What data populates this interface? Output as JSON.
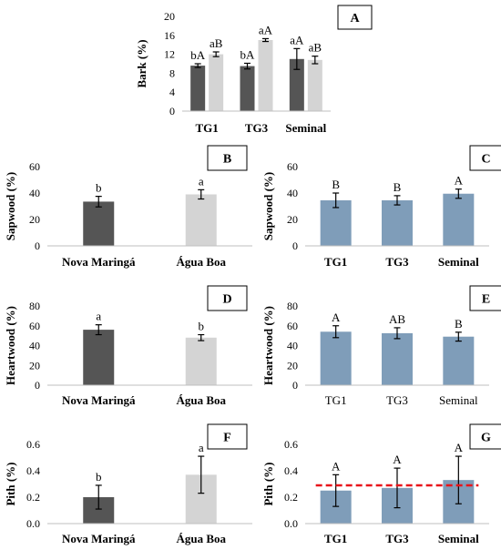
{
  "chart_data": [
    {
      "panel": "A",
      "type": "bar",
      "ylabel": "Bark (%)",
      "ylim": [
        0,
        20
      ],
      "yticks": [
        0,
        4,
        8,
        12,
        16,
        20
      ],
      "y_tick_labels": [
        "0",
        "4",
        "8",
        "12",
        "16",
        "20"
      ],
      "categories": [
        "TG1",
        "TG3",
        "Seminal"
      ],
      "category_style": "bold",
      "series": [
        {
          "color": "#555555",
          "values": [
            9.6,
            9.5,
            11.0
          ],
          "errors": [
            0.4,
            0.6,
            2.2
          ],
          "labels": [
            "bA",
            "bA",
            "aA"
          ]
        },
        {
          "color": "#d4d4d4",
          "values": [
            12.0,
            15.0,
            10.8
          ],
          "errors": [
            0.5,
            0.3,
            0.8
          ],
          "labels": [
            "aB",
            "aA",
            "aB"
          ]
        }
      ]
    },
    {
      "panel": "B",
      "type": "bar",
      "ylabel": "Sapwood (%)",
      "ylim": [
        0,
        60
      ],
      "yticks": [
        0,
        20,
        40,
        60
      ],
      "y_tick_labels": [
        "0",
        "20",
        "40",
        "60"
      ],
      "categories": [
        "Nova Maringá",
        "Água Boa"
      ],
      "category_style": "bold",
      "series": [
        {
          "colors": [
            "#555555",
            "#d4d4d4"
          ],
          "values": [
            33.5,
            39.0
          ],
          "errors": [
            4.0,
            3.5
          ],
          "labels": [
            "b",
            "a"
          ]
        }
      ]
    },
    {
      "panel": "C",
      "type": "bar",
      "ylabel": "Sapwood (%)",
      "ylim": [
        0,
        60
      ],
      "yticks": [
        0,
        20,
        40,
        60
      ],
      "y_tick_labels": [
        "0",
        "20",
        "40",
        "60"
      ],
      "categories": [
        "TG1",
        "TG3",
        "Seminal"
      ],
      "category_style": "bold",
      "series": [
        {
          "color": "#7f9db9",
          "values": [
            34.5,
            34.5,
            39.5
          ],
          "errors": [
            5.5,
            3.5,
            3.5
          ],
          "labels": [
            "B",
            "B",
            "A"
          ]
        }
      ]
    },
    {
      "panel": "D",
      "type": "bar",
      "ylabel": "Heartwood  (%)",
      "ylim": [
        0,
        80
      ],
      "yticks": [
        0,
        20,
        40,
        60,
        80
      ],
      "y_tick_labels": [
        "0",
        "20",
        "40",
        "60",
        "80"
      ],
      "categories": [
        "Nova Maringá",
        "Água Boa"
      ],
      "category_style": "bold",
      "series": [
        {
          "colors": [
            "#555555",
            "#d4d4d4"
          ],
          "values": [
            56.0,
            48.0
          ],
          "errors": [
            5.0,
            3.0
          ],
          "labels": [
            "a",
            "b"
          ]
        }
      ]
    },
    {
      "panel": "E",
      "type": "bar",
      "ylabel": "Heartwood  (%)",
      "ylim": [
        0,
        80
      ],
      "yticks": [
        0,
        20,
        40,
        60,
        80
      ],
      "y_tick_labels": [
        "0",
        "20",
        "40",
        "60",
        "80"
      ],
      "categories": [
        "TG1",
        "TG3",
        "Seminal"
      ],
      "category_style": "plain",
      "series": [
        {
          "color": "#7f9db9",
          "values": [
            54.0,
            52.5,
            49.0
          ],
          "errors": [
            6.0,
            5.5,
            4.5
          ],
          "labels": [
            "A",
            "AB",
            "B"
          ]
        }
      ]
    },
    {
      "panel": "F",
      "type": "bar",
      "ylabel": "Pith (%)",
      "ylim": [
        0,
        0.6
      ],
      "yticks": [
        0,
        0.2,
        0.4,
        0.6
      ],
      "y_tick_labels": [
        "0.0",
        "0.2",
        "0.4",
        "0.6"
      ],
      "categories": [
        "Nova Maringá",
        "Água Boa"
      ],
      "category_style": "bold",
      "series": [
        {
          "colors": [
            "#555555",
            "#d4d4d4"
          ],
          "values": [
            0.2,
            0.37
          ],
          "errors": [
            0.09,
            0.14
          ],
          "labels": [
            "b",
            "a"
          ]
        }
      ]
    },
    {
      "panel": "G",
      "type": "bar",
      "ylabel": "Pith (%)",
      "ylim": [
        0,
        0.6
      ],
      "yticks": [
        0,
        0.2,
        0.4,
        0.6
      ],
      "y_tick_labels": [
        "0.0",
        "0.2",
        "0.4",
        "0.6"
      ],
      "categories": [
        "TG1",
        "TG3",
        "Seminal"
      ],
      "category_style": "bold",
      "series": [
        {
          "color": "#7f9db9",
          "values": [
            0.25,
            0.27,
            0.33
          ],
          "errors": [
            0.12,
            0.15,
            0.18
          ],
          "labels": [
            "A",
            "A",
            "A"
          ]
        }
      ],
      "reference_line": {
        "value": 0.29,
        "style": "dashed",
        "color": "#e8141b"
      }
    }
  ]
}
